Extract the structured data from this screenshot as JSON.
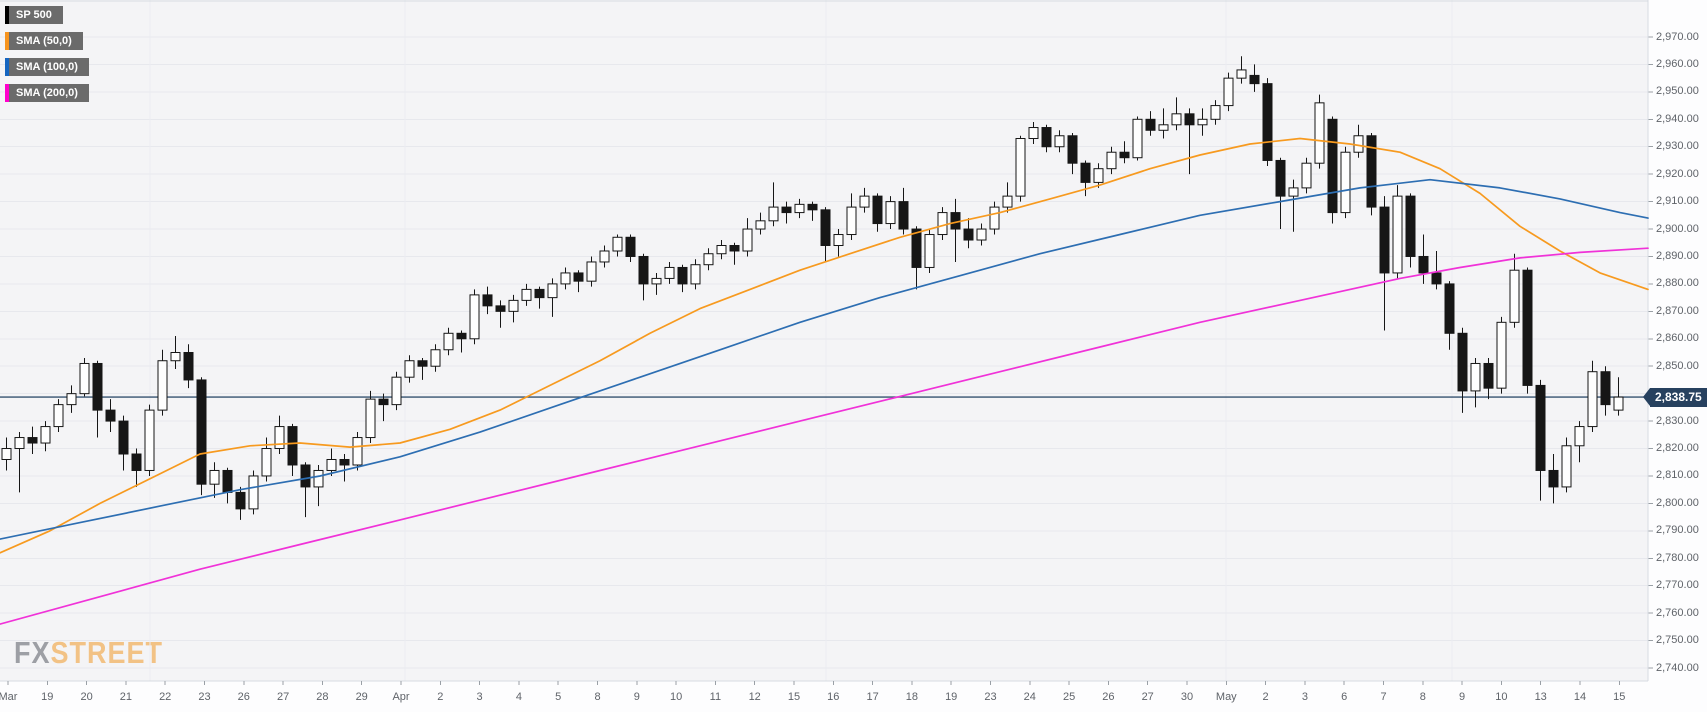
{
  "legend": {
    "items": [
      {
        "label": "SP 500",
        "color": "#000000"
      },
      {
        "label": "SMA (50,0)",
        "color": "#f7941e"
      },
      {
        "label": "SMA (100,0)",
        "color": "#1565c0"
      },
      {
        "label": "SMA (200,0)",
        "color": "#ff00cc"
      }
    ]
  },
  "watermark": {
    "part1": "FX",
    "part2": "STREET",
    "part1_color": "#8d9097",
    "part2_color": "#f2bd79"
  },
  "price_tag": {
    "label": "2,838.75",
    "value": 2838.75,
    "bg_color": "#27415f"
  },
  "colors": {
    "plot_bg": "#f4f4f6",
    "grid_h": "#e7e8ed",
    "grid_v": "#ebecf1",
    "frame": "#d7dbe1",
    "axis_text": "#5f6369",
    "tick": "#9aa0a6",
    "price_line": "#34516f",
    "candle_outline": "#161616",
    "candle_up_fill": "#fefefe",
    "candle_down_fill": "#161616",
    "sma50": "#f79a1f",
    "sma100": "#2d6eb2",
    "sma200": "#f032d8"
  },
  "chart_data": {
    "type": "candlestick",
    "symbol": "SP 500",
    "overlays": [
      "SMA (50,0)",
      "SMA (100,0)",
      "SMA (200,0)"
    ],
    "grid": true,
    "legend_position": "top-left",
    "last_price": 2838.75,
    "y_axis": {
      "side": "right",
      "min": 2740,
      "max": 2970,
      "tick_step": 10,
      "tick_values": [
        2970,
        2960,
        2950,
        2940,
        2930,
        2920,
        2910,
        2900,
        2890,
        2880,
        2870,
        2860,
        2850,
        2840,
        2830,
        2820,
        2810,
        2800,
        2790,
        2780,
        2770,
        2760,
        2750,
        2740
      ],
      "tick_labels": [
        "2,970.00",
        "2,960.00",
        "2,950.00",
        "2,940.00",
        "2,930.00",
        "2,920.00",
        "2,910.00",
        "2,900.00",
        "2,890.00",
        "2,880.00",
        "2,870.00",
        "2,860.00",
        "2,850.00",
        "2,840.00",
        "2,830.00",
        "2,820.00",
        "2,810.00",
        "2,800.00",
        "2,790.00",
        "2,780.00",
        "2,770.00",
        "2,760.00",
        "2,750.00",
        "2,740.00"
      ]
    },
    "x_axis": {
      "labels": [
        "Mar",
        "19",
        "20",
        "21",
        "22",
        "23",
        "26",
        "27",
        "28",
        "29",
        "Apr",
        "2",
        "3",
        "4",
        "5",
        "8",
        "9",
        "10",
        "11",
        "12",
        "15",
        "16",
        "17",
        "18",
        "19",
        "23",
        "24",
        "25",
        "26",
        "27",
        "30",
        "May",
        "2",
        "3",
        "6",
        "7",
        "8",
        "9",
        "10",
        "13",
        "14",
        "15"
      ],
      "month_gridlines": [
        150,
        405,
        826,
        1226,
        1452
      ]
    },
    "candles_per_label": 3,
    "candles": [
      [
        2816,
        2824,
        2812,
        2820
      ],
      [
        2820,
        2826,
        2804,
        2824
      ],
      [
        2824,
        2828,
        2818,
        2822
      ],
      [
        2822,
        2830,
        2819,
        2828
      ],
      [
        2828,
        2838,
        2826,
        2836
      ],
      [
        2836,
        2843,
        2833,
        2840
      ],
      [
        2840,
        2853,
        2839,
        2851
      ],
      [
        2851,
        2852,
        2824,
        2834
      ],
      [
        2834,
        2838,
        2826,
        2830
      ],
      [
        2830,
        2832,
        2812,
        2818
      ],
      [
        2818,
        2820,
        2806,
        2812
      ],
      [
        2812,
        2836,
        2810,
        2834
      ],
      [
        2834,
        2856,
        2832,
        2852
      ],
      [
        2852,
        2861,
        2849,
        2855
      ],
      [
        2855,
        2858,
        2842,
        2845
      ],
      [
        2845,
        2846,
        2803,
        2807
      ],
      [
        2807,
        2815,
        2802,
        2812
      ],
      [
        2812,
        2813,
        2800,
        2804
      ],
      [
        2804,
        2806,
        2794,
        2798
      ],
      [
        2798,
        2812,
        2796,
        2810
      ],
      [
        2810,
        2824,
        2808,
        2820
      ],
      [
        2820,
        2832,
        2818,
        2828
      ],
      [
        2828,
        2829,
        2810,
        2814
      ],
      [
        2814,
        2815,
        2795,
        2806
      ],
      [
        2806,
        2814,
        2799,
        2812
      ],
      [
        2812,
        2820,
        2810,
        2816
      ],
      [
        2816,
        2818,
        2808,
        2814
      ],
      [
        2814,
        2826,
        2812,
        2824
      ],
      [
        2824,
        2841,
        2822,
        2838
      ],
      [
        2838,
        2840,
        2830,
        2836
      ],
      [
        2836,
        2848,
        2834,
        2846
      ],
      [
        2846,
        2854,
        2844,
        2852
      ],
      [
        2852,
        2853,
        2845,
        2850
      ],
      [
        2850,
        2858,
        2848,
        2856
      ],
      [
        2856,
        2864,
        2854,
        2862
      ],
      [
        2862,
        2863,
        2855,
        2860
      ],
      [
        2860,
        2878,
        2858,
        2876
      ],
      [
        2876,
        2879,
        2869,
        2872
      ],
      [
        2872,
        2874,
        2864,
        2870
      ],
      [
        2870,
        2876,
        2866,
        2874
      ],
      [
        2874,
        2880,
        2872,
        2878
      ],
      [
        2878,
        2879,
        2871,
        2875
      ],
      [
        2875,
        2882,
        2868,
        2880
      ],
      [
        2880,
        2886,
        2878,
        2884
      ],
      [
        2884,
        2885,
        2877,
        2881
      ],
      [
        2881,
        2890,
        2879,
        2888
      ],
      [
        2888,
        2894,
        2886,
        2892
      ],
      [
        2892,
        2898,
        2890,
        2897
      ],
      [
        2897,
        2898,
        2888,
        2890
      ],
      [
        2890,
        2891,
        2874,
        2880
      ],
      [
        2880,
        2884,
        2876,
        2882
      ],
      [
        2882,
        2888,
        2880,
        2886
      ],
      [
        2886,
        2887,
        2877,
        2880
      ],
      [
        2880,
        2889,
        2878,
        2887
      ],
      [
        2887,
        2893,
        2885,
        2891
      ],
      [
        2891,
        2896,
        2889,
        2894
      ],
      [
        2894,
        2895,
        2887,
        2892
      ],
      [
        2892,
        2904,
        2890,
        2900
      ],
      [
        2900,
        2906,
        2898,
        2903
      ],
      [
        2903,
        2917,
        2901,
        2908
      ],
      [
        2908,
        2910,
        2902,
        2906
      ],
      [
        2906,
        2911,
        2904,
        2909
      ],
      [
        2909,
        2910,
        2903,
        2907
      ],
      [
        2907,
        2908,
        2888,
        2894
      ],
      [
        2894,
        2900,
        2890,
        2898
      ],
      [
        2898,
        2913,
        2896,
        2908
      ],
      [
        2908,
        2915,
        2906,
        2912
      ],
      [
        2912,
        2913,
        2899,
        2902
      ],
      [
        2902,
        2912,
        2900,
        2910
      ],
      [
        2910,
        2915,
        2898,
        2900
      ],
      [
        2900,
        2901,
        2878,
        2886
      ],
      [
        2886,
        2900,
        2884,
        2898
      ],
      [
        2898,
        2908,
        2896,
        2906
      ],
      [
        2906,
        2911,
        2888,
        2900
      ],
      [
        2900,
        2904,
        2893,
        2896
      ],
      [
        2896,
        2902,
        2894,
        2900
      ],
      [
        2900,
        2910,
        2898,
        2908
      ],
      [
        2908,
        2917,
        2906,
        2912
      ],
      [
        2912,
        2934,
        2910,
        2933
      ],
      [
        2933,
        2939,
        2931,
        2937
      ],
      [
        2937,
        2938,
        2928,
        2930
      ],
      [
        2930,
        2936,
        2928,
        2934
      ],
      [
        2934,
        2935,
        2920,
        2924
      ],
      [
        2924,
        2925,
        2912,
        2917
      ],
      [
        2917,
        2924,
        2915,
        2922
      ],
      [
        2922,
        2930,
        2920,
        2928
      ],
      [
        2928,
        2932,
        2924,
        2926
      ],
      [
        2926,
        2941,
        2925,
        2940
      ],
      [
        2940,
        2943,
        2934,
        2936
      ],
      [
        2936,
        2944,
        2933,
        2938
      ],
      [
        2938,
        2948,
        2936,
        2942
      ],
      [
        2942,
        2944,
        2920,
        2938
      ],
      [
        2938,
        2944,
        2934,
        2940
      ],
      [
        2940,
        2947,
        2938,
        2945
      ],
      [
        2945,
        2957,
        2943,
        2955
      ],
      [
        2955,
        2963,
        2953,
        2958
      ],
      [
        2956,
        2960,
        2950,
        2953
      ],
      [
        2953,
        2955,
        2923,
        2925
      ],
      [
        2925,
        2926,
        2900,
        2912
      ],
      [
        2912,
        2918,
        2899,
        2915
      ],
      [
        2915,
        2926,
        2913,
        2924
      ],
      [
        2924,
        2949,
        2922,
        2946
      ],
      [
        2940,
        2941,
        2902,
        2906
      ],
      [
        2906,
        2930,
        2904,
        2928
      ],
      [
        2928,
        2938,
        2926,
        2934
      ],
      [
        2934,
        2935,
        2905,
        2908
      ],
      [
        2908,
        2912,
        2863,
        2884
      ],
      [
        2884,
        2916,
        2882,
        2912
      ],
      [
        2912,
        2913,
        2886,
        2890
      ],
      [
        2890,
        2898,
        2880,
        2884
      ],
      [
        2884,
        2892,
        2878,
        2880
      ],
      [
        2880,
        2881,
        2856,
        2862
      ],
      [
        2862,
        2864,
        2833,
        2841
      ],
      [
        2841,
        2853,
        2835,
        2851
      ],
      [
        2851,
        2853,
        2838,
        2842
      ],
      [
        2842,
        2868,
        2840,
        2866
      ],
      [
        2866,
        2891,
        2864,
        2885
      ],
      [
        2885,
        2886,
        2840,
        2843
      ],
      [
        2843,
        2845,
        2801,
        2812
      ],
      [
        2812,
        2818,
        2800,
        2806
      ],
      [
        2806,
        2824,
        2804,
        2821
      ],
      [
        2821,
        2830,
        2815,
        2828
      ],
      [
        2828,
        2852,
        2826,
        2848
      ],
      [
        2848,
        2850,
        2832,
        2836
      ],
      [
        2834,
        2846,
        2832,
        2838.75
      ]
    ],
    "sma_series": [
      {
        "name": "SMA (50,0)",
        "period": 50,
        "points": [
          [
            0,
            2782
          ],
          [
            50,
            2790
          ],
          [
            100,
            2800
          ],
          [
            150,
            2809
          ],
          [
            200,
            2818
          ],
          [
            250,
            2821
          ],
          [
            300,
            2822
          ],
          [
            350,
            2820.5
          ],
          [
            400,
            2822
          ],
          [
            450,
            2827
          ],
          [
            500,
            2834
          ],
          [
            550,
            2843
          ],
          [
            600,
            2852
          ],
          [
            650,
            2862
          ],
          [
            700,
            2871
          ],
          [
            750,
            2878
          ],
          [
            800,
            2885
          ],
          [
            850,
            2891
          ],
          [
            900,
            2897
          ],
          [
            950,
            2902
          ],
          [
            1000,
            2906
          ],
          [
            1050,
            2911
          ],
          [
            1100,
            2916
          ],
          [
            1150,
            2922
          ],
          [
            1200,
            2927
          ],
          [
            1250,
            2931
          ],
          [
            1300,
            2933
          ],
          [
            1350,
            2931
          ],
          [
            1400,
            2928
          ],
          [
            1440,
            2922
          ],
          [
            1480,
            2913
          ],
          [
            1520,
            2901
          ],
          [
            1560,
            2892
          ],
          [
            1600,
            2884
          ],
          [
            1648,
            2878
          ]
        ]
      },
      {
        "name": "SMA (100,0)",
        "period": 100,
        "points": [
          [
            0,
            2787
          ],
          [
            80,
            2793
          ],
          [
            160,
            2799
          ],
          [
            240,
            2805
          ],
          [
            320,
            2810
          ],
          [
            400,
            2817
          ],
          [
            480,
            2826
          ],
          [
            560,
            2836
          ],
          [
            640,
            2846
          ],
          [
            720,
            2856
          ],
          [
            800,
            2866
          ],
          [
            880,
            2875
          ],
          [
            960,
            2883
          ],
          [
            1040,
            2891
          ],
          [
            1120,
            2898
          ],
          [
            1200,
            2905
          ],
          [
            1280,
            2910
          ],
          [
            1360,
            2915
          ],
          [
            1430,
            2918
          ],
          [
            1500,
            2915
          ],
          [
            1560,
            2911
          ],
          [
            1620,
            2906
          ],
          [
            1648,
            2904
          ]
        ]
      },
      {
        "name": "SMA (200,0)",
        "period": 200,
        "points": [
          [
            0,
            2756
          ],
          [
            100,
            2766
          ],
          [
            200,
            2776
          ],
          [
            300,
            2785
          ],
          [
            400,
            2794
          ],
          [
            500,
            2803
          ],
          [
            600,
            2812
          ],
          [
            700,
            2821
          ],
          [
            800,
            2830
          ],
          [
            900,
            2839
          ],
          [
            1000,
            2848
          ],
          [
            1100,
            2857
          ],
          [
            1200,
            2866
          ],
          [
            1300,
            2874
          ],
          [
            1400,
            2882
          ],
          [
            1460,
            2886
          ],
          [
            1520,
            2889.5
          ],
          [
            1580,
            2891.5
          ],
          [
            1648,
            2893
          ]
        ]
      }
    ]
  }
}
